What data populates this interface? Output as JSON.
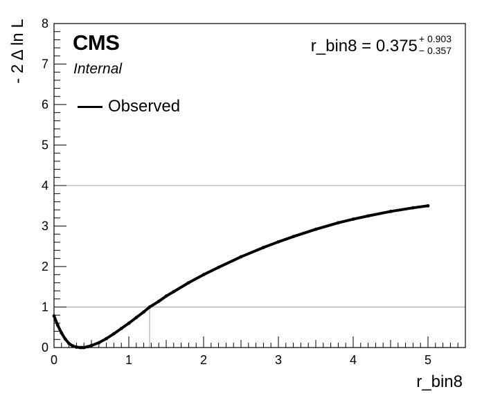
{
  "header": {
    "experiment": "CMS",
    "status": "Internal"
  },
  "result": {
    "parameter": "r_bin8",
    "central": "0.375",
    "err_up": "+ 0.903",
    "err_down": "− 0.357",
    "text_prefix": "r_bin8 = 0.375"
  },
  "legend": {
    "observed": "Observed"
  },
  "chart_data": {
    "type": "line",
    "xlabel": "r_bin8",
    "ylabel": "- 2 Δ ln L",
    "xlim": [
      0,
      5.5
    ],
    "ylim": [
      0,
      8
    ],
    "x_ticks": [
      0,
      1,
      2,
      3,
      4,
      5
    ],
    "y_ticks": [
      0,
      1,
      2,
      3,
      4,
      5,
      6,
      7,
      8
    ],
    "reference_lines_y": [
      1,
      4
    ],
    "interval_marker_x": 1.278,
    "series": [
      {
        "name": "Observed",
        "color": "#000000",
        "x": [
          0.0,
          0.05,
          0.1,
          0.15,
          0.2,
          0.25,
          0.3,
          0.35,
          0.375,
          0.4,
          0.45,
          0.5,
          0.6,
          0.7,
          0.8,
          0.9,
          1.0,
          1.1,
          1.2,
          1.278,
          1.4,
          1.5,
          1.6,
          1.8,
          2.0,
          2.2,
          2.5,
          2.8,
          3.0,
          3.2,
          3.5,
          3.8,
          4.0,
          4.2,
          4.5,
          4.8,
          5.0
        ],
        "y": [
          0.78,
          0.55,
          0.36,
          0.21,
          0.1,
          0.04,
          0.01,
          0.0,
          0.0,
          0.0,
          0.02,
          0.05,
          0.12,
          0.22,
          0.34,
          0.47,
          0.6,
          0.74,
          0.88,
          1.0,
          1.14,
          1.27,
          1.38,
          1.6,
          1.8,
          1.98,
          2.24,
          2.47,
          2.61,
          2.74,
          2.92,
          3.08,
          3.17,
          3.25,
          3.36,
          3.45,
          3.5
        ]
      }
    ]
  }
}
